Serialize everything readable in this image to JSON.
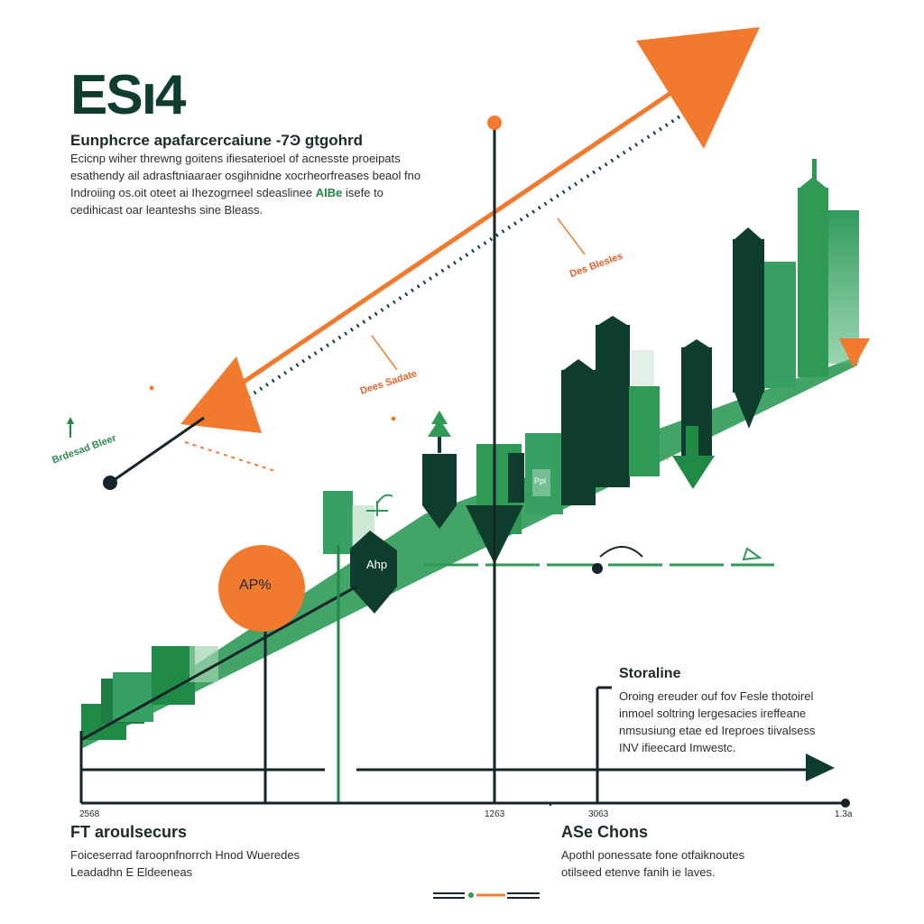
{
  "heading": {
    "title": "ESı4",
    "subtitle": "Eunphcrce apafarcercaiune -7Ͽ gtgohrd",
    "body_pre": "Ecicnp wiher threwng goitens ifiesaterioel of acnesste proeipats esathendy ail adrasftniaaraer osgihnidne xocrheorfreases beaol fno Indroiing os.oit oteet ai Ihezogrneel sdeaslinee",
    "body_highlight": "AIBe",
    "body_post": "isefe to cedihicast oar leanteshs sine Bleass."
  },
  "annotations": {
    "top_right": "Des Blesles",
    "middle": "Dees Sadate",
    "left": "Brdesad Bleer",
    "circle_badge": "AP%",
    "dark_marker": "Ahp",
    "small_bar_label": "Ppl"
  },
  "axis": {
    "ticks": [
      "2568",
      "1263",
      "3063",
      "1.3a"
    ]
  },
  "storeline": {
    "title": "Storaline",
    "body": "Oroing ereuder ouf fov Fesle thotoirel inmoel soltring lergesacies ireffeane nmsusiung etae ed Ireproes tiivalsess INV ifieecard Imwestc."
  },
  "footer_left": {
    "title": "FT aroulsecurs",
    "body": "Foiceserrad faroopnfnorrch Hnod Wueredes Leadadhn E Eldeeneas"
  },
  "footer_right": {
    "title": "ASe Chons",
    "body": "Apothl ponessate fone otfaiknoutes otilseed etenve fanih ie laves."
  },
  "colors": {
    "orange": "#f27a2f",
    "green": "#2f9a5a",
    "light_green": "#55b57a",
    "dark_green": "#0f3d2d",
    "navy": "#15232a"
  }
}
